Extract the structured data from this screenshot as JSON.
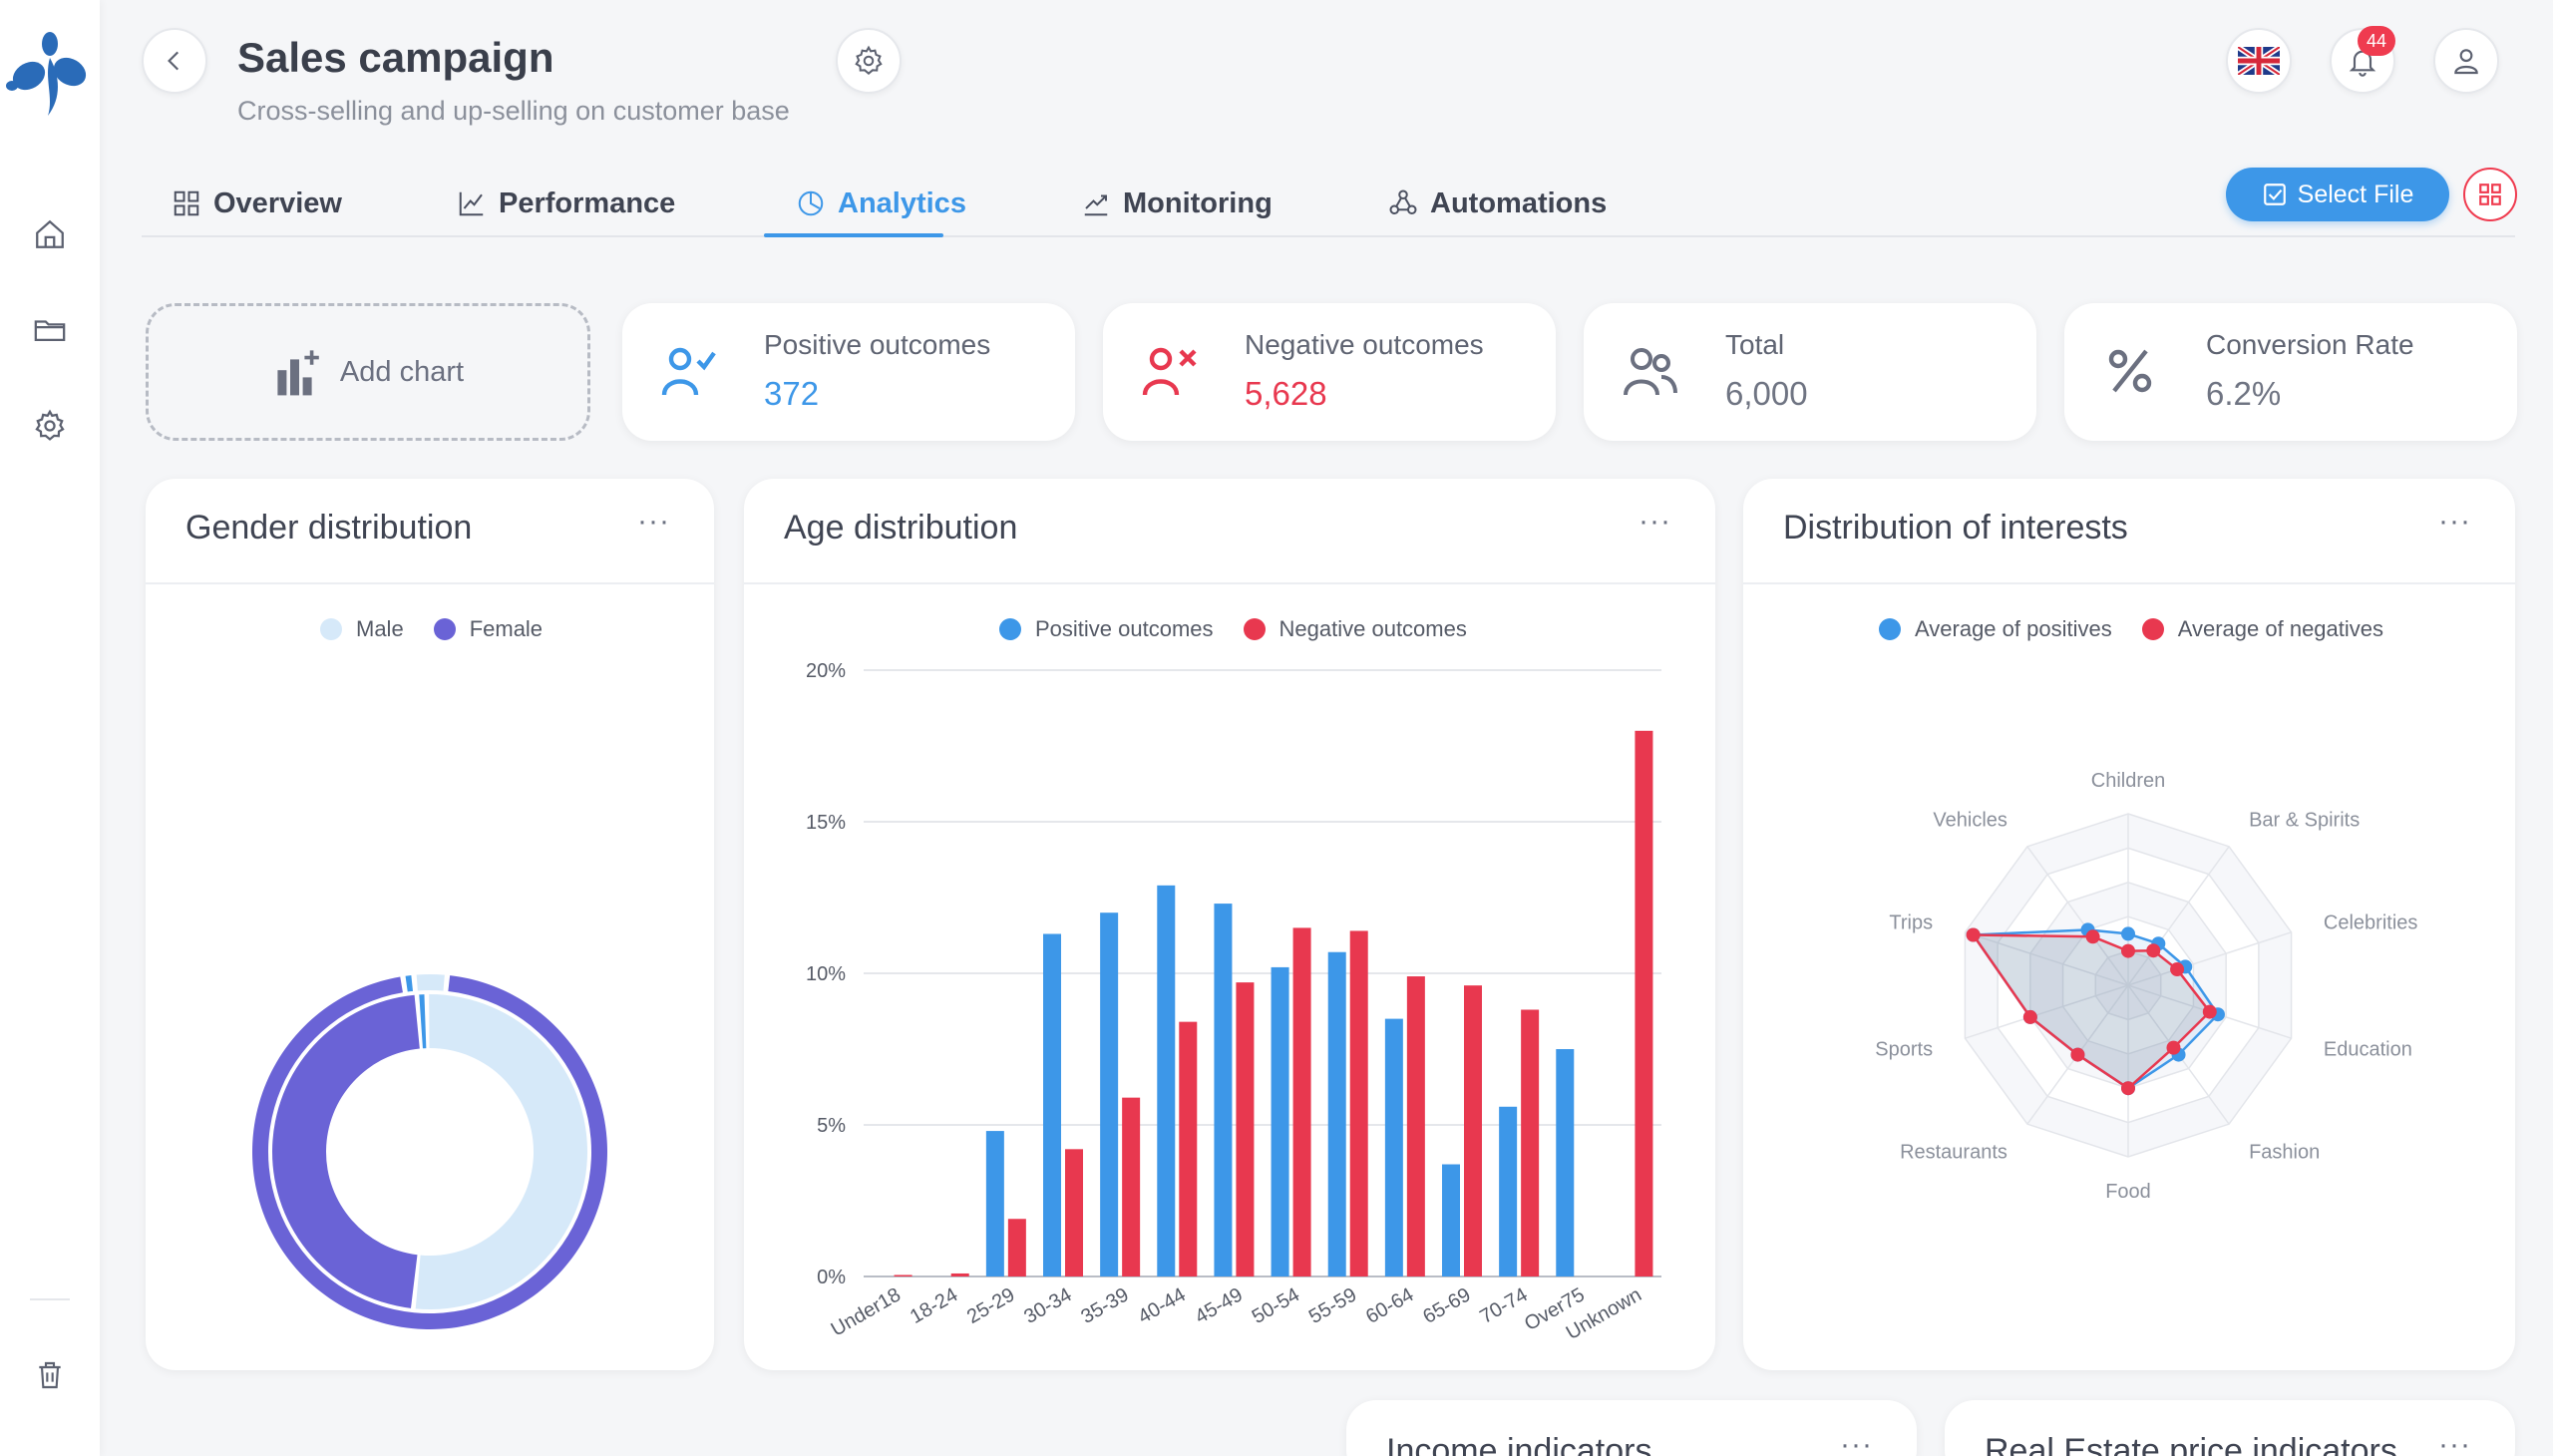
{
  "header": {
    "title": "Sales campaign",
    "subtitle": "Cross-selling and up-selling on customer base",
    "notifications_count": "44"
  },
  "tabs": [
    {
      "label": "Overview",
      "active": false
    },
    {
      "label": "Performance",
      "active": false
    },
    {
      "label": "Analytics",
      "active": true
    },
    {
      "label": "Monitoring",
      "active": false
    },
    {
      "label": "Automations",
      "active": false
    }
  ],
  "toolbar": {
    "select_file_label": "Select File"
  },
  "add_chart_label": "Add chart",
  "kpis": [
    {
      "label": "Positive outcomes",
      "value": "372"
    },
    {
      "label": "Negative outcomes",
      "value": "5,628"
    },
    {
      "label": "Total",
      "value": "6,000"
    },
    {
      "label": "Conversion Rate",
      "value": "6.2%"
    }
  ],
  "panels": {
    "gender": {
      "title": "Gender distribution",
      "menu": "···"
    },
    "age": {
      "title": "Age distribution",
      "menu": "···"
    },
    "interests": {
      "title": "Distribution of interests",
      "menu": "···"
    },
    "income": {
      "title": "Income indicators",
      "menu": "···"
    },
    "realestate": {
      "title": "Real Estate price indicators",
      "menu": "···"
    }
  },
  "colors": {
    "accent": "#3d97e8",
    "positive": "#3d97e8",
    "negative": "#e8384f",
    "male": "#d6e9f9",
    "female": "#6a63d6"
  },
  "chart_data": [
    {
      "type": "pie",
      "title": "Gender distribution",
      "legend": [
        "Male",
        "Female"
      ],
      "series": [
        {
          "name": "inner",
          "values": [
            {
              "label": "Male",
              "value": 52
            },
            {
              "label": "Female",
              "value": 47
            },
            {
              "label": "Unknown",
              "value": 1
            }
          ]
        },
        {
          "name": "outer",
          "values": [
            {
              "label": "Male",
              "value": 3
            },
            {
              "label": "Female",
              "value": 96
            },
            {
              "label": "Unknown",
              "value": 1
            }
          ]
        }
      ]
    },
    {
      "type": "bar",
      "title": "Age distribution",
      "categories": [
        "Under18",
        "18-24",
        "25-29",
        "30-34",
        "35-39",
        "40-44",
        "45-49",
        "50-54",
        "55-59",
        "60-64",
        "65-69",
        "70-74",
        "Over75",
        "Unknown"
      ],
      "series": [
        {
          "name": "Positive outcomes",
          "values": [
            0,
            0,
            4.8,
            11.3,
            12.0,
            12.9,
            12.3,
            10.2,
            10.7,
            8.5,
            3.7,
            5.6,
            7.5,
            0
          ]
        },
        {
          "name": "Negative outcomes",
          "values": [
            0.05,
            0.1,
            1.9,
            4.2,
            5.9,
            8.4,
            9.7,
            11.5,
            11.4,
            9.9,
            9.6,
            8.8,
            0,
            18.0
          ]
        }
      ],
      "yticks": [
        "0%",
        "5%",
        "10%",
        "15%",
        "20%"
      ],
      "ylim": [
        0,
        20
      ]
    },
    {
      "type": "radar",
      "title": "Distribution of interests",
      "categories": [
        "Children",
        "Bar & Spirits",
        "Celebrities",
        "Education",
        "Fashion",
        "Food",
        "Restaurants",
        "Sports",
        "Trips",
        "Vehicles"
      ],
      "series": [
        {
          "name": "Average of positives",
          "values": [
            0.3,
            0.3,
            0.35,
            0.55,
            0.5,
            0.6,
            0.5,
            0.6,
            0.95,
            0.4
          ]
        },
        {
          "name": "Average of negatives",
          "values": [
            0.2,
            0.25,
            0.3,
            0.5,
            0.45,
            0.6,
            0.5,
            0.6,
            0.95,
            0.35
          ]
        }
      ],
      "max": 1
    }
  ]
}
